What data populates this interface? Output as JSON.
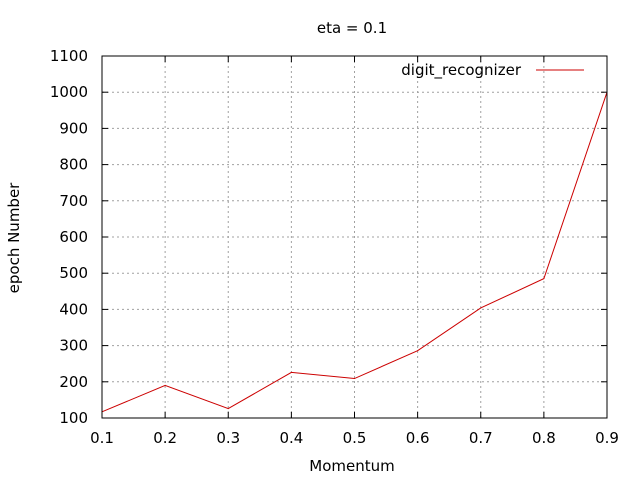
{
  "chart_data": {
    "type": "line",
    "title": "eta = 0.1",
    "xlabel": "Momentum",
    "ylabel": "epoch Number",
    "xlim": [
      0.1,
      0.9
    ],
    "ylim": [
      100,
      1100
    ],
    "xticks": [
      "0.1",
      "0.2",
      "0.3",
      "0.4",
      "0.5",
      "0.6",
      "0.7",
      "0.8",
      "0.9"
    ],
    "yticks": [
      "100",
      "200",
      "300",
      "400",
      "500",
      "600",
      "700",
      "800",
      "900",
      "1000",
      "1100"
    ],
    "grid": true,
    "legend_position": "top-right",
    "series": [
      {
        "name": "digit_recognizer",
        "color": "#cc0000",
        "x": [
          0.1,
          0.2,
          0.3,
          0.4,
          0.5,
          0.6,
          0.7,
          0.8,
          0.9
        ],
        "y": [
          117,
          190,
          126,
          226,
          209,
          286,
          404,
          485,
          1000
        ]
      }
    ]
  }
}
